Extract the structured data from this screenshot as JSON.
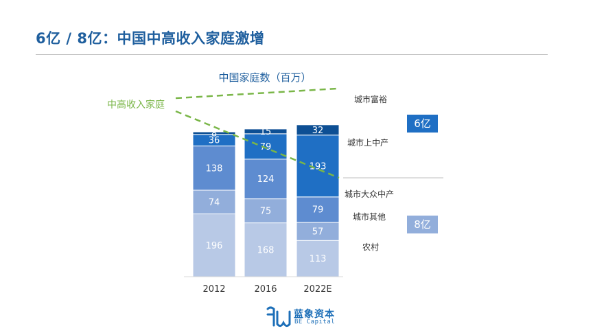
{
  "title": "6亿 / 8亿：中国中高收入家庭激增",
  "chart_data": {
    "type": "bar",
    "stacked": true,
    "title": "中国家庭数（百万）",
    "categories": [
      "2012",
      "2016",
      "2022E"
    ],
    "series": [
      {
        "name": "农村",
        "values": [
          196,
          168,
          113
        ],
        "color": "#b8c9e6"
      },
      {
        "name": "城市其他",
        "values": [
          74,
          75,
          57
        ],
        "color": "#92aedb"
      },
      {
        "name": "城市大众中产",
        "values": [
          138,
          124,
          79
        ],
        "color": "#5e8cd0"
      },
      {
        "name": "城市上中产",
        "values": [
          36,
          79,
          193
        ],
        "color": "#1f6fc4"
      },
      {
        "name": "城市富裕",
        "values": [
          8,
          15,
          32
        ],
        "color": "#0d4f94"
      }
    ],
    "annotation": "中高收入家庭",
    "annotation_color": "#7ab648",
    "grid": false
  },
  "side_labels": [
    {
      "text": "6亿",
      "color": "#1f6fc4"
    },
    {
      "text": "8亿",
      "color": "#92aedb"
    }
  ],
  "logo": {
    "cn": "蓝象资本",
    "en": "BE Capital",
    "color": "#1d6fb8"
  }
}
